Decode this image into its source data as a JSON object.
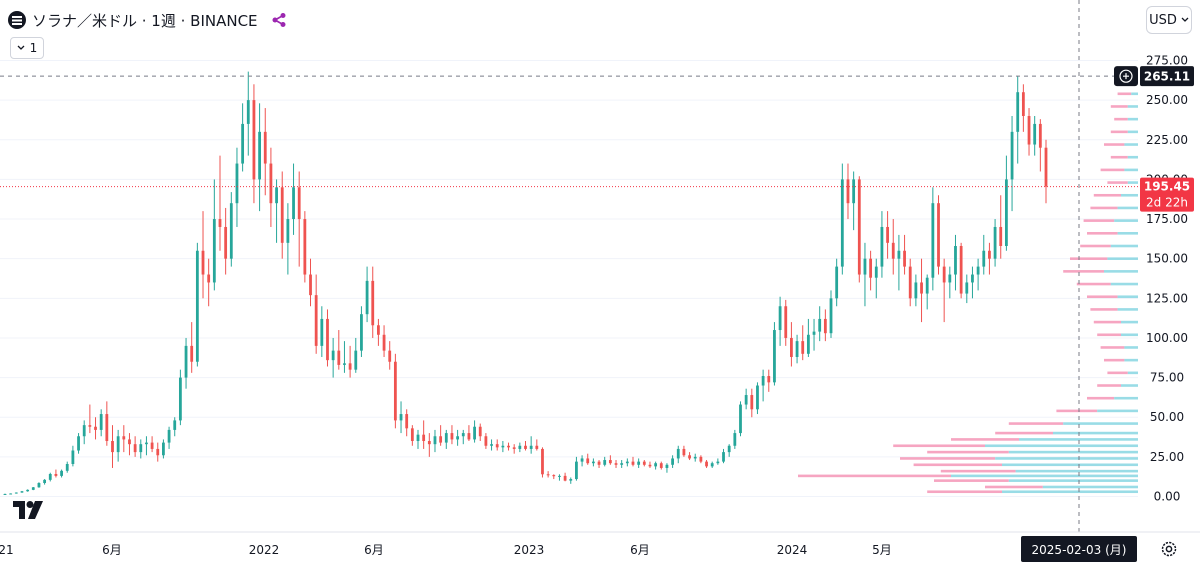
{
  "header": {
    "symbol_title": "ソラナ／米ドル · 1週 · BINANCE",
    "interval_label": "1",
    "currency_label": "USD"
  },
  "price_axis": {
    "ticks": [
      "275.00",
      "250.00",
      "225.00",
      "200.00",
      "175.00",
      "150.00",
      "125.00",
      "100.00",
      "75.00",
      "50.00",
      "25.00",
      "0.00"
    ]
  },
  "time_axis": {
    "labels": [
      "21",
      "6月",
      "2022",
      "6月",
      "2023",
      "6月",
      "2024",
      "5月"
    ],
    "crosshair_date": "2025-02-03 (月)"
  },
  "crosshair_price": "265.11",
  "last_price": {
    "value": "195.45",
    "countdown": "2d 22h"
  },
  "colors": {
    "up": "#26a69a",
    "down": "#ef5350",
    "last_price": "#f23645",
    "axis_text": "#131722",
    "crosshair_label_bg": "#131722",
    "volume_profile_up": "#7fd3e0",
    "volume_profile_down": "#f48fb1"
  },
  "icons": {
    "symbol": "solana-logo-icon",
    "share": "share-icon",
    "logo": "tradingview-logo",
    "settings": "gear-icon"
  },
  "chart_data": {
    "type": "candlestick",
    "interval": "1W",
    "ylim": [
      0,
      275
    ],
    "x_start": "2020-12-28",
    "x_end": "2025-02-03",
    "candles": [
      [
        1.5,
        1.8,
        1.4,
        1.6
      ],
      [
        1.6,
        2.0,
        1.5,
        1.9
      ],
      [
        1.9,
        2.6,
        1.8,
        2.5
      ],
      [
        2.5,
        3.5,
        2.3,
        3.3
      ],
      [
        3.3,
        4.5,
        3.0,
        4.2
      ],
      [
        4.2,
        6.0,
        4.0,
        5.8
      ],
      [
        5.8,
        9.0,
        5.5,
        8.5
      ],
      [
        8.5,
        11,
        7.5,
        10.5
      ],
      [
        10.5,
        15,
        9.5,
        14.2
      ],
      [
        14.2,
        17,
        12,
        13.0
      ],
      [
        13,
        17,
        12,
        16.2
      ],
      [
        16.2,
        22,
        15,
        20.5
      ],
      [
        20.5,
        32,
        19,
        29.0
      ],
      [
        29,
        40,
        27,
        38.0
      ],
      [
        38,
        48,
        33,
        45.0
      ],
      [
        45,
        58,
        40,
        44.0
      ],
      [
        44,
        50,
        36,
        42.0
      ],
      [
        42,
        55,
        38,
        52.0
      ],
      [
        52,
        60,
        32,
        35.0
      ],
      [
        35,
        45,
        18,
        28.0
      ],
      [
        28,
        42,
        22,
        38.0
      ],
      [
        38,
        45,
        28,
        36.0
      ],
      [
        36,
        40,
        26,
        33.0
      ],
      [
        33,
        38,
        25,
        28.0
      ],
      [
        28,
        36,
        24,
        33.0
      ],
      [
        33,
        38,
        26,
        34.0
      ],
      [
        34,
        38,
        28,
        30.0
      ],
      [
        30,
        34,
        22,
        26.0
      ],
      [
        26,
        36,
        24,
        34.0
      ],
      [
        34,
        44,
        30,
        42.0
      ],
      [
        42,
        50,
        38,
        48.0
      ],
      [
        48,
        80,
        45,
        75.0
      ],
      [
        75,
        100,
        68,
        95.0
      ],
      [
        95,
        110,
        78,
        85.0
      ],
      [
        85,
        160,
        82,
        155.0
      ],
      [
        155,
        180,
        125,
        140.0
      ],
      [
        140,
        150,
        120,
        135.0
      ],
      [
        135,
        200,
        130,
        175.0
      ],
      [
        175,
        215,
        155,
        170.0
      ],
      [
        170,
        182,
        140,
        150.0
      ],
      [
        150,
        192,
        145,
        185.0
      ],
      [
        185,
        220,
        170,
        210.0
      ],
      [
        210,
        248,
        205,
        235.0
      ],
      [
        235,
        268,
        215,
        250.0
      ],
      [
        250,
        260,
        185,
        200.0
      ],
      [
        200,
        248,
        180,
        230.0
      ],
      [
        230,
        245,
        190,
        210.0
      ],
      [
        210,
        220,
        170,
        185.0
      ],
      [
        185,
        200,
        160,
        195.0
      ],
      [
        195,
        205,
        150,
        160.0
      ],
      [
        160,
        185,
        140,
        175.0
      ],
      [
        175,
        210,
        165,
        195.0
      ],
      [
        195,
        205,
        145,
        175.0
      ],
      [
        175,
        180,
        135,
        140.0
      ],
      [
        140,
        150,
        120,
        127.0
      ],
      [
        127,
        140,
        90,
        95.0
      ],
      [
        95,
        120,
        88,
        112.0
      ],
      [
        112,
        118,
        82,
        86.0
      ],
      [
        86,
        100,
        75,
        92.0
      ],
      [
        92,
        105,
        80,
        83.0
      ],
      [
        83,
        98,
        78,
        84.0
      ],
      [
        84,
        95,
        75,
        80.0
      ],
      [
        80,
        100,
        78,
        92.0
      ],
      [
        92,
        120,
        88,
        115.0
      ],
      [
        115,
        145,
        110,
        136.0
      ],
      [
        136,
        145,
        100,
        108.0
      ],
      [
        108,
        112,
        95,
        102.0
      ],
      [
        102,
        108,
        88,
        92.0
      ],
      [
        92,
        98,
        80,
        85.0
      ],
      [
        85,
        90,
        43,
        48.0
      ],
      [
        48,
        60,
        40,
        52.0
      ],
      [
        52,
        55,
        38,
        43.0
      ],
      [
        43,
        45,
        32,
        35.0
      ],
      [
        35,
        42,
        30,
        39.0
      ],
      [
        39,
        48,
        30,
        35.0
      ],
      [
        35,
        40,
        25,
        33.0
      ],
      [
        33,
        42,
        28,
        38.0
      ],
      [
        38,
        45,
        32,
        34.0
      ],
      [
        34,
        42,
        30,
        40.0
      ],
      [
        40,
        45,
        33,
        36.0
      ],
      [
        36,
        42,
        32,
        38.0
      ],
      [
        38,
        42,
        33,
        40.0
      ],
      [
        40,
        45,
        35,
        36.0
      ],
      [
        36,
        48,
        34,
        44.0
      ],
      [
        44,
        46,
        35,
        38.0
      ],
      [
        38,
        40,
        30,
        32.0
      ],
      [
        32,
        36,
        29,
        33.0
      ],
      [
        33,
        36,
        29,
        31.0
      ],
      [
        31,
        35,
        28,
        32.0
      ],
      [
        32,
        34,
        29,
        31.0
      ],
      [
        31,
        33,
        27,
        30.0
      ],
      [
        30,
        34,
        28,
        32.0
      ],
      [
        32,
        35,
        29,
        30.0
      ],
      [
        30,
        38,
        27,
        32.0
      ],
      [
        32,
        36,
        29,
        30.0
      ],
      [
        30,
        31,
        12,
        14.0
      ],
      [
        14,
        16,
        12,
        13.5
      ],
      [
        13.5,
        14,
        11,
        12.8
      ],
      [
        12.8,
        14,
        10,
        13.0
      ],
      [
        13,
        15,
        9.6,
        10.0
      ],
      [
        10,
        12,
        8,
        11.0
      ],
      [
        11,
        25,
        10,
        22.0
      ],
      [
        22,
        26,
        19,
        24.0
      ],
      [
        24,
        27,
        20,
        21.0
      ],
      [
        21,
        24,
        19,
        22.0
      ],
      [
        22,
        23,
        18,
        20.0
      ],
      [
        20,
        25,
        19,
        23.0
      ],
      [
        23,
        26,
        20,
        21.0
      ],
      [
        21,
        23,
        18,
        20.0
      ],
      [
        20,
        23,
        18,
        21.0
      ],
      [
        21,
        24,
        19,
        22.0
      ],
      [
        22,
        25,
        19,
        20.0
      ],
      [
        20,
        24,
        18,
        22.0
      ],
      [
        22,
        23,
        19,
        20.0
      ],
      [
        20,
        22,
        18,
        19.0
      ],
      [
        19,
        22,
        17,
        21.0
      ],
      [
        21,
        22,
        17,
        18.0
      ],
      [
        18,
        21,
        15,
        20.0
      ],
      [
        20,
        26,
        18,
        24.0
      ],
      [
        24,
        32,
        21,
        30.0
      ],
      [
        30,
        32,
        25,
        26.0
      ],
      [
        26,
        28,
        23,
        24.0
      ],
      [
        24,
        27,
        22,
        25.0
      ],
      [
        25,
        26,
        21,
        22.0
      ],
      [
        22,
        23,
        18,
        19.0
      ],
      [
        19,
        22,
        18,
        21.0
      ],
      [
        21,
        24,
        20,
        22.0
      ],
      [
        22,
        30,
        21,
        28.0
      ],
      [
        28,
        33,
        25,
        32.0
      ],
      [
        32,
        42,
        30,
        40.0
      ],
      [
        40,
        60,
        38,
        58.0
      ],
      [
        58,
        68,
        55,
        64.0
      ],
      [
        64,
        68,
        50,
        55.0
      ],
      [
        55,
        72,
        52,
        70.0
      ],
      [
        70,
        80,
        60,
        76.0
      ],
      [
        76,
        80,
        66,
        72.0
      ],
      [
        72,
        110,
        70,
        105.0
      ],
      [
        105,
        126,
        95,
        120.0
      ],
      [
        120,
        124,
        95,
        100.0
      ],
      [
        100,
        110,
        82,
        88.0
      ],
      [
        88,
        102,
        84,
        98.0
      ],
      [
        98,
        108,
        86,
        90.0
      ],
      [
        90,
        112,
        88,
        102.0
      ],
      [
        102,
        112,
        92,
        104.0
      ],
      [
        104,
        120,
        98,
        112.0
      ],
      [
        112,
        118,
        98,
        103.0
      ],
      [
        103,
        130,
        100,
        125.0
      ],
      [
        125,
        150,
        120,
        145.0
      ],
      [
        145,
        210,
        140,
        200.0
      ],
      [
        200,
        210,
        175,
        185.0
      ],
      [
        185,
        205,
        168,
        200.0
      ],
      [
        200,
        202,
        135,
        140.0
      ],
      [
        140,
        160,
        120,
        150.0
      ],
      [
        150,
        155,
        130,
        138.0
      ],
      [
        138,
        150,
        125,
        145.0
      ],
      [
        145,
        180,
        138,
        170.0
      ],
      [
        170,
        180,
        150,
        160.0
      ],
      [
        160,
        175,
        140,
        150.0
      ],
      [
        150,
        165,
        130,
        155.0
      ],
      [
        155,
        165,
        140,
        145.0
      ],
      [
        145,
        150,
        120,
        125.0
      ],
      [
        125,
        140,
        120,
        135.0
      ],
      [
        135,
        150,
        110,
        128.0
      ],
      [
        128,
        140,
        118,
        138.0
      ],
      [
        138,
        195,
        130,
        185.0
      ],
      [
        185,
        190,
        140,
        145.0
      ],
      [
        145,
        150,
        110,
        135.0
      ],
      [
        135,
        145,
        125,
        140.0
      ],
      [
        140,
        165,
        130,
        158.0
      ],
      [
        158,
        160,
        125,
        128.0
      ],
      [
        128,
        140,
        122,
        135.0
      ],
      [
        135,
        145,
        125,
        140.0
      ],
      [
        140,
        150,
        130,
        145.0
      ],
      [
        145,
        165,
        140,
        155.0
      ],
      [
        155,
        160,
        140,
        150.0
      ],
      [
        150,
        175,
        145,
        170.0
      ],
      [
        170,
        190,
        150,
        158.0
      ],
      [
        158,
        215,
        155,
        200.0
      ],
      [
        200,
        240,
        180,
        230.0
      ],
      [
        230,
        265,
        210,
        255.0
      ],
      [
        255,
        260,
        230,
        240.0
      ],
      [
        240,
        245,
        215,
        222.0
      ],
      [
        222,
        240,
        215,
        235.0
      ],
      [
        235,
        238,
        205,
        220.0
      ],
      [
        220,
        225,
        185,
        195.5
      ]
    ],
    "volume_profile": [
      [
        262,
        0.05,
        0.01
      ],
      [
        254,
        0.06,
        0.02
      ],
      [
        246,
        0.08,
        0.03
      ],
      [
        238,
        0.07,
        0.03
      ],
      [
        230,
        0.08,
        0.03
      ],
      [
        222,
        0.1,
        0.04
      ],
      [
        214,
        0.08,
        0.03
      ],
      [
        206,
        0.11,
        0.04
      ],
      [
        198,
        0.09,
        0.03
      ],
      [
        190,
        0.13,
        0.05
      ],
      [
        182,
        0.14,
        0.06
      ],
      [
        174,
        0.16,
        0.07
      ],
      [
        166,
        0.15,
        0.06
      ],
      [
        158,
        0.17,
        0.08
      ],
      [
        150,
        0.2,
        0.09
      ],
      [
        142,
        0.22,
        0.1
      ],
      [
        134,
        0.18,
        0.08
      ],
      [
        126,
        0.15,
        0.06
      ],
      [
        118,
        0.14,
        0.06
      ],
      [
        110,
        0.13,
        0.05
      ],
      [
        102,
        0.12,
        0.05
      ],
      [
        94,
        0.11,
        0.04
      ],
      [
        86,
        0.1,
        0.04
      ],
      [
        78,
        0.09,
        0.03
      ],
      [
        70,
        0.12,
        0.05
      ],
      [
        62,
        0.15,
        0.07
      ],
      [
        54,
        0.24,
        0.12
      ],
      [
        46,
        0.38,
        0.22
      ],
      [
        40,
        0.42,
        0.25
      ],
      [
        36,
        0.55,
        0.35
      ],
      [
        32,
        0.72,
        0.45
      ],
      [
        28,
        0.62,
        0.38
      ],
      [
        24,
        0.7,
        0.42
      ],
      [
        20,
        0.66,
        0.4
      ],
      [
        16,
        0.58,
        0.36
      ],
      [
        13,
        1.0,
        0.55
      ],
      [
        10,
        0.6,
        0.38
      ],
      [
        6,
        0.45,
        0.28
      ],
      [
        3,
        0.62,
        0.4
      ]
    ]
  }
}
